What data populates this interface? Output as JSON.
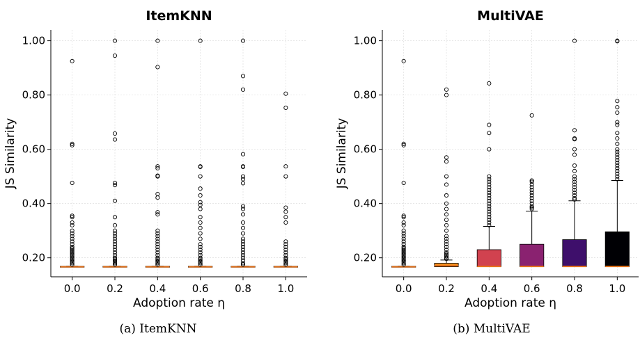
{
  "chart_data": [
    {
      "type": "box",
      "title": "ItemKNN",
      "xlabel": "Adoption rate η",
      "ylabel": "JS Similarity",
      "ylim": [
        0.13,
        1.04
      ],
      "yticks": [
        "0.20",
        "0.40",
        "0.60",
        "0.80",
        "1.00"
      ],
      "ytick_values": [
        0.2,
        0.4,
        0.6,
        0.8,
        1.0
      ],
      "categories": [
        "0.0",
        "0.2",
        "0.4",
        "0.6",
        "0.8",
        "1.0"
      ],
      "grid": true,
      "caption": "(a) ItemKNN",
      "boxes": [
        {
          "color": "#f0921e",
          "q1": 0.167,
          "median": 0.167,
          "q3": 0.169,
          "whisker_low": 0.167,
          "whisker_high": 0.169,
          "outliers": [
            0.925,
            0.62,
            0.615,
            0.476,
            0.355,
            0.35,
            0.33,
            0.32,
            0.3,
            0.29,
            0.28,
            0.27,
            0.26,
            0.25,
            0.24,
            0.235,
            0.23,
            0.225,
            0.22,
            0.215,
            0.21,
            0.205,
            0.2,
            0.195,
            0.19,
            0.185,
            0.18,
            0.175
          ]
        },
        {
          "color": "#f0921e",
          "q1": 0.167,
          "median": 0.167,
          "q3": 0.169,
          "whisker_low": 0.167,
          "whisker_high": 0.169,
          "outliers": [
            1.0,
            0.945,
            0.658,
            0.636,
            0.476,
            0.468,
            0.41,
            0.35,
            0.32,
            0.3,
            0.29,
            0.28,
            0.27,
            0.26,
            0.25,
            0.24,
            0.23,
            0.22,
            0.21,
            0.2,
            0.195,
            0.19,
            0.185,
            0.18,
            0.175
          ]
        },
        {
          "color": "#f0921e",
          "q1": 0.167,
          "median": 0.167,
          "q3": 0.169,
          "whisker_low": 0.167,
          "whisker_high": 0.169,
          "outliers": [
            1.0,
            0.903,
            0.537,
            0.53,
            0.503,
            0.5,
            0.435,
            0.422,
            0.368,
            0.36,
            0.3,
            0.29,
            0.28,
            0.27,
            0.26,
            0.25,
            0.24,
            0.23,
            0.22,
            0.21,
            0.2,
            0.195,
            0.19,
            0.185,
            0.18,
            0.175
          ]
        },
        {
          "color": "#f0921e",
          "q1": 0.167,
          "median": 0.167,
          "q3": 0.169,
          "whisker_low": 0.167,
          "whisker_high": 0.169,
          "outliers": [
            1.0,
            0.537,
            0.535,
            0.5,
            0.455,
            0.43,
            0.405,
            0.395,
            0.38,
            0.35,
            0.33,
            0.31,
            0.29,
            0.27,
            0.25,
            0.24,
            0.23,
            0.22,
            0.21,
            0.2,
            0.195,
            0.19,
            0.185,
            0.18,
            0.175
          ]
        },
        {
          "color": "#f0921e",
          "q1": 0.167,
          "median": 0.167,
          "q3": 0.169,
          "whisker_low": 0.167,
          "whisker_high": 0.169,
          "outliers": [
            1.0,
            0.87,
            0.82,
            0.582,
            0.537,
            0.535,
            0.5,
            0.49,
            0.475,
            0.39,
            0.38,
            0.36,
            0.33,
            0.31,
            0.29,
            0.27,
            0.26,
            0.25,
            0.24,
            0.23,
            0.22,
            0.21,
            0.2,
            0.19,
            0.18,
            0.175
          ]
        },
        {
          "color": "#f0921e",
          "q1": 0.167,
          "median": 0.167,
          "q3": 0.169,
          "whisker_low": 0.167,
          "whisker_high": 0.169,
          "outliers": [
            0.805,
            0.753,
            0.537,
            0.5,
            0.385,
            0.37,
            0.35,
            0.33,
            0.26,
            0.25,
            0.24,
            0.23,
            0.22,
            0.21,
            0.2,
            0.195,
            0.19,
            0.185,
            0.18,
            0.175
          ]
        }
      ]
    },
    {
      "type": "box",
      "title": "MultiVAE",
      "xlabel": "Adoption rate η",
      "ylabel": "JS Similarity",
      "ylim": [
        0.13,
        1.04
      ],
      "yticks": [
        "0.20",
        "0.40",
        "0.60",
        "0.80",
        "1.00"
      ],
      "ytick_values": [
        0.2,
        0.4,
        0.6,
        0.8,
        1.0
      ],
      "categories": [
        "0.0",
        "0.2",
        "0.4",
        "0.6",
        "0.8",
        "1.0"
      ],
      "grid": true,
      "caption": "(b) MultiVAE",
      "boxes": [
        {
          "color": "#f0921e",
          "q1": 0.167,
          "median": 0.167,
          "q3": 0.169,
          "whisker_low": 0.167,
          "whisker_high": 0.169,
          "outliers": [
            0.925,
            0.62,
            0.615,
            0.476,
            0.355,
            0.35,
            0.33,
            0.32,
            0.3,
            0.29,
            0.28,
            0.27,
            0.26,
            0.25,
            0.24,
            0.235,
            0.23,
            0.225,
            0.22,
            0.215,
            0.21,
            0.205,
            0.2,
            0.195,
            0.19,
            0.185,
            0.18,
            0.175
          ]
        },
        {
          "color": "#f5901e",
          "q1": 0.167,
          "median": 0.171,
          "q3": 0.18,
          "whisker_low": 0.167,
          "whisker_high": 0.192,
          "outliers": [
            0.82,
            0.8,
            0.57,
            0.555,
            0.5,
            0.47,
            0.43,
            0.4,
            0.38,
            0.36,
            0.34,
            0.32,
            0.3,
            0.28,
            0.27,
            0.26,
            0.25,
            0.24,
            0.23,
            0.22,
            0.215,
            0.21,
            0.205,
            0.2,
            0.196
          ]
        },
        {
          "color": "#d1424f",
          "q1": 0.167,
          "median": 0.168,
          "q3": 0.23,
          "whisker_low": 0.167,
          "whisker_high": 0.316,
          "outliers": [
            0.843,
            0.69,
            0.66,
            0.6,
            0.5,
            0.49,
            0.48,
            0.47,
            0.46,
            0.45,
            0.44,
            0.43,
            0.42,
            0.41,
            0.4,
            0.39,
            0.38,
            0.37,
            0.36,
            0.35,
            0.34,
            0.33,
            0.32
          ]
        },
        {
          "color": "#8a2270",
          "q1": 0.167,
          "median": 0.168,
          "q3": 0.25,
          "whisker_low": 0.167,
          "whisker_high": 0.372,
          "outliers": [
            0.725,
            0.485,
            0.48,
            0.47,
            0.46,
            0.45,
            0.44,
            0.43,
            0.42,
            0.41,
            0.4,
            0.39,
            0.385,
            0.38
          ]
        },
        {
          "color": "#3e0f6b",
          "q1": 0.167,
          "median": 0.168,
          "q3": 0.267,
          "whisker_low": 0.167,
          "whisker_high": 0.41,
          "outliers": [
            1.0,
            0.67,
            0.64,
            0.637,
            0.6,
            0.58,
            0.54,
            0.52,
            0.5,
            0.49,
            0.48,
            0.47,
            0.46,
            0.45,
            0.44,
            0.43,
            0.42,
            0.415
          ]
        },
        {
          "color": "#000004",
          "q1": 0.167,
          "median": 0.168,
          "q3": 0.296,
          "whisker_low": 0.167,
          "whisker_high": 0.485,
          "outliers": [
            1.0,
            0.998,
            0.778,
            0.755,
            0.735,
            0.7,
            0.69,
            0.66,
            0.64,
            0.62,
            0.6,
            0.59,
            0.58,
            0.57,
            0.56,
            0.55,
            0.54,
            0.53,
            0.52,
            0.51,
            0.5,
            0.49
          ]
        }
      ]
    }
  ]
}
